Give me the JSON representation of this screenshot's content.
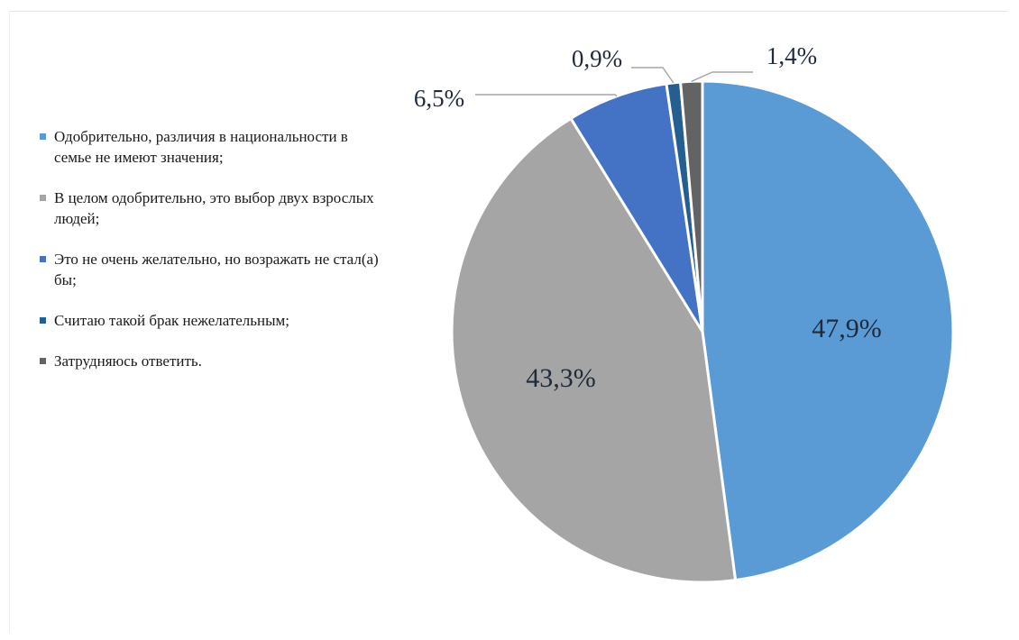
{
  "chart_data": {
    "type": "pie",
    "title": "",
    "start_angle_deg": 0,
    "direction": "clockwise",
    "legend_position": "left",
    "slices": [
      {
        "label": "Одобрительно, различия в национальности в семье не имеют значения;",
        "value": 47.9,
        "value_label": "47,9%",
        "color": "#5B9BD5",
        "label_placement": "inside"
      },
      {
        "label": "В целом одобрительно, это выбор двух взрослых людей;",
        "value": 43.3,
        "value_label": "43,3%",
        "color": "#A5A5A5",
        "label_placement": "inside"
      },
      {
        "label": "Это не очень желательно, но возражать не стал(а) бы;",
        "value": 6.5,
        "value_label": "6,5%",
        "color": "#4472C4",
        "label_placement": "outside"
      },
      {
        "label": "Считаю такой брак нежелательным;",
        "value": 0.9,
        "value_label": "0,9%",
        "color": "#255E91",
        "label_placement": "outside"
      },
      {
        "label": "Затрудняюсь ответить.",
        "value": 1.4,
        "value_label": "1,4%",
        "color": "#636363",
        "label_placement": "outside"
      }
    ]
  }
}
